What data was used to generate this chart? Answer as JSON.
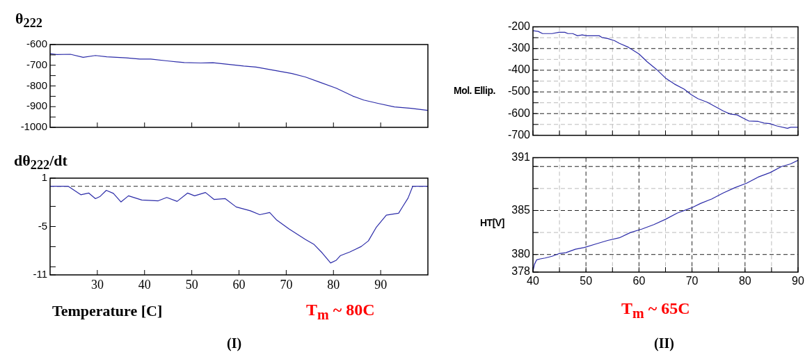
{
  "chart_data": [
    {
      "type": "line",
      "ylabel": "θ$_{222}$",
      "marker": "none",
      "tick_labels": "y",
      "xlim": [
        20,
        100
      ],
      "xticks": [
        {
          "value": 30,
          "label": null
        },
        {
          "value": 40,
          "label": null
        },
        {
          "value": 50,
          "label": null
        },
        {
          "value": 60,
          "label": null
        },
        {
          "value": 70,
          "label": null
        },
        {
          "value": 80,
          "label": null
        },
        {
          "value": 90,
          "label": null
        }
      ],
      "ylim": [
        -1000,
        -600
      ],
      "yticks": [
        -1000,
        {
          "value": -950,
          "label": null
        },
        -900,
        {
          "value": -850,
          "label": null
        },
        -800,
        {
          "value": -750,
          "label": null
        },
        -700,
        {
          "value": -650,
          "label": null
        },
        -600
      ],
      "x": [
        20,
        21.4,
        24.3,
        27,
        29.6,
        32,
        36.1,
        39,
        41.3,
        44.8,
        48.4,
        51.9,
        54.5,
        58.3,
        61,
        63.6,
        67.1,
        71.2,
        74.1,
        77.1,
        80.6,
        84.1,
        86.4,
        89.4,
        92.9,
        96.4,
        100
      ],
      "series": [
        {
          "color": "#2b2ba8",
          "values": [
            -644,
            -648,
            -647,
            -662,
            -653,
            -659,
            -664,
            -670,
            -670,
            -679,
            -687,
            -689,
            -688,
            -697,
            -704,
            -709,
            -723,
            -740,
            -757,
            -782,
            -811,
            -849,
            -868,
            -884,
            -901,
            -908,
            -918
          ]
        }
      ]
    },
    {
      "type": "line",
      "ylabel": "dθ$_{222}$/dt",
      "xlabel": "Temperature [C]",
      "marker": "none",
      "annotations": [
        "T$_{m}$ ~ 80C",
        "(I)"
      ],
      "xlim": [
        20,
        100
      ],
      "xticks": [
        30,
        40,
        50,
        60,
        70,
        80,
        90
      ],
      "ylim": [
        -11,
        1
      ],
      "yticks": [
        -11,
        {
          "value": -10,
          "label": null
        },
        {
          "value": -7.5,
          "label": null
        },
        -5,
        {
          "value": -2.5,
          "label": null
        },
        1
      ],
      "ref_lines": [
        {
          "axis": "y",
          "value": 0,
          "color": "#555555",
          "line_style": "dashed"
        }
      ],
      "x": [
        20,
        23.8,
        26.5,
        28.2,
        29.6,
        30.6,
        31.9,
        33.4,
        35,
        36.6,
        39.4,
        42.9,
        44.7,
        46.9,
        49.1,
        50.6,
        52.9,
        54.7,
        57.1,
        59.4,
        62.4,
        64.4,
        66.5,
        68,
        70.6,
        74.1,
        75.9,
        77.6,
        79.4,
        80.6,
        81.5,
        83.5,
        85.9,
        87.4,
        89.1,
        91.2,
        93.8,
        94.7,
        95.8,
        96.8,
        100
      ],
      "series": [
        {
          "color": "#2b2ba8",
          "values": [
            0,
            0,
            -1.06,
            -0.85,
            -1.54,
            -1.26,
            -0.51,
            -0.89,
            -1.95,
            -1.19,
            -1.71,
            -1.81,
            -1.4,
            -1.88,
            -0.85,
            -1.19,
            -0.78,
            -1.64,
            -1.54,
            -2.57,
            -3.05,
            -3.53,
            -3.26,
            -4.21,
            -5.31,
            -6.61,
            -7.23,
            -8.26,
            -9.52,
            -9.18,
            -8.6,
            -8.15,
            -7.47,
            -6.78,
            -5.07,
            -3.59,
            -3.35,
            -2.5,
            -1.47,
            0,
            0
          ]
        }
      ]
    },
    {
      "type": "line",
      "ylabel": "Mol. Ellip.",
      "marker": "none",
      "grid": true,
      "tick_labels": "y",
      "xlim": [
        40,
        90
      ],
      "xticks": [
        {
          "value": 40,
          "label": null
        },
        {
          "value": 45,
          "label": null
        },
        {
          "value": 50,
          "label": null
        },
        {
          "value": 55,
          "label": null
        },
        {
          "value": 60,
          "label": null
        },
        {
          "value": 65,
          "label": null
        },
        {
          "value": 70,
          "label": null
        },
        {
          "value": 75,
          "label": null
        },
        {
          "value": 80,
          "label": null
        },
        {
          "value": 85,
          "label": null
        },
        {
          "value": 90,
          "label": null
        }
      ],
      "ylim": [
        -700,
        -200
      ],
      "yticks": [
        -700,
        {
          "value": -650,
          "label": null
        },
        -600,
        {
          "value": -550,
          "label": null
        },
        -500,
        {
          "value": -450,
          "label": null
        },
        -400,
        {
          "value": -350,
          "label": null
        },
        -300,
        {
          "value": -250,
          "label": null
        },
        -200
      ],
      "x": [
        40,
        41,
        41.8,
        43.6,
        44.9,
        46,
        46.6,
        47.5,
        48.4,
        49.3,
        50.1,
        52.5,
        53,
        54.1,
        55.4,
        56.3,
        58,
        60,
        61.5,
        63.3,
        65,
        66.7,
        68.5,
        69.8,
        71.1,
        72.9,
        74.4,
        75.9,
        77.2,
        78.5,
        79.9,
        80.7,
        82.5,
        83.6,
        84.7,
        86,
        88,
        88.6,
        90
      ],
      "series": [
        {
          "color": "#2b2ba8",
          "values": [
            -218,
            -221,
            -231,
            -231,
            -225,
            -225,
            -231,
            -231,
            -241,
            -237,
            -241,
            -241,
            -249,
            -254,
            -264,
            -276,
            -294,
            -325,
            -360,
            -396,
            -436,
            -464,
            -487,
            -512,
            -531,
            -548,
            -568,
            -588,
            -602,
            -606,
            -624,
            -634,
            -636,
            -644,
            -646,
            -657,
            -668,
            -663,
            -663
          ]
        }
      ]
    },
    {
      "type": "line",
      "ylabel": "HT[V]",
      "marker": "none",
      "grid": true,
      "annotations": [
        "T$_{m}$ ~ 65C",
        "(II)"
      ],
      "xlim": [
        40,
        90
      ],
      "xticks": [
        40,
        {
          "value": 45,
          "label": null
        },
        50,
        {
          "value": 55,
          "label": null
        },
        60,
        {
          "value": 65,
          "label": null
        },
        70,
        {
          "value": 75,
          "label": null
        },
        80,
        {
          "value": 85,
          "label": null
        },
        90
      ],
      "ylim": [
        378,
        391
      ],
      "yticks": [
        378,
        380,
        {
          "value": 382.5,
          "label": null
        },
        385,
        {
          "value": 387.5,
          "label": null
        },
        {
          "value": 390,
          "label": null
        },
        391
      ],
      "x": [
        40,
        40.3,
        40.7,
        41.4,
        42.3,
        43.6,
        44.9,
        46.2,
        48,
        49.7,
        51.9,
        54.1,
        56.3,
        58.4,
        60.6,
        62.8,
        65,
        67.2,
        69.9,
        71.6,
        73.7,
        75.9,
        78.1,
        80.3,
        82.5,
        84.7,
        86.9,
        88.6,
        90
      ],
      "series": [
        {
          "color": "#2b2ba8",
          "values": [
            378.1,
            378.9,
            379.4,
            379.5,
            379.6,
            379.8,
            380.1,
            380.2,
            380.6,
            380.8,
            381.2,
            381.6,
            381.9,
            382.5,
            382.9,
            383.4,
            384,
            384.7,
            385.3,
            385.8,
            386.3,
            387,
            387.6,
            388.1,
            388.8,
            389.3,
            390,
            390.3,
            390.7
          ]
        }
      ]
    }
  ]
}
